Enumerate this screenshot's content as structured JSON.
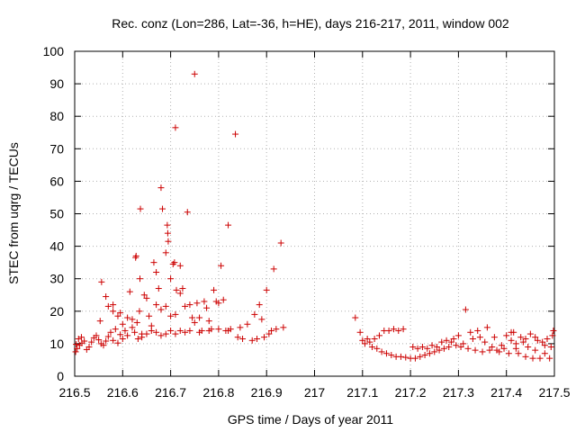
{
  "chart_data": {
    "type": "scatter",
    "title": "Rec. conz (Lon=286, Lat=-36, h=HE), days 216-217, 2011, window 002",
    "xlabel": "GPS time / Days of year 2011",
    "ylabel": "STEC from uqrg / TECUs",
    "xlim": [
      216.5,
      217.5
    ],
    "ylim": [
      0,
      100
    ],
    "x_ticks": [
      "216.5",
      "216.6",
      "216.7",
      "216.8",
      "216.9",
      "217",
      "217.1",
      "217.2",
      "217.3",
      "217.4",
      "217.5"
    ],
    "y_ticks": [
      "0",
      "10",
      "20",
      "30",
      "40",
      "50",
      "60",
      "70",
      "80",
      "90",
      "100"
    ],
    "grid": true,
    "marker": "plus",
    "marker_color": "#cc0000",
    "series": [
      {
        "points": [
          [
            216.502,
            7.5
          ],
          [
            216.505,
            8.5
          ],
          [
            216.51,
            9.5
          ],
          [
            216.515,
            10.2
          ],
          [
            216.52,
            10.8
          ],
          [
            216.503,
            9.8
          ],
          [
            216.508,
            11.5
          ],
          [
            216.514,
            12.0
          ],
          [
            216.525,
            8.2
          ],
          [
            216.53,
            9.0
          ],
          [
            216.535,
            10.5
          ],
          [
            216.54,
            11.8
          ],
          [
            216.545,
            12.5
          ],
          [
            216.55,
            11.2
          ],
          [
            216.555,
            10.0
          ],
          [
            216.56,
            9.5
          ],
          [
            216.565,
            10.8
          ],
          [
            216.57,
            12.2
          ],
          [
            216.575,
            13.5
          ],
          [
            216.58,
            11.0
          ],
          [
            216.585,
            14.5
          ],
          [
            216.59,
            10.2
          ],
          [
            216.595,
            12.8
          ],
          [
            216.6,
            11.5
          ],
          [
            216.553,
            17.0
          ],
          [
            216.556,
            29.0
          ],
          [
            216.565,
            24.5
          ],
          [
            216.57,
            21.5
          ],
          [
            216.58,
            20.0
          ],
          [
            216.59,
            18.5
          ],
          [
            216.6,
            16.0
          ],
          [
            216.58,
            22.0
          ],
          [
            216.595,
            19.5
          ],
          [
            216.605,
            14.0
          ],
          [
            216.61,
            12.5
          ],
          [
            216.615,
            26.0
          ],
          [
            216.62,
            17.5
          ],
          [
            216.625,
            13.5
          ],
          [
            216.63,
            16.5
          ],
          [
            216.635,
            20.0
          ],
          [
            216.61,
            18.0
          ],
          [
            216.62,
            15.0
          ],
          [
            216.632,
            11.5
          ],
          [
            216.64,
            13.0
          ],
          [
            216.645,
            25.0
          ],
          [
            216.65,
            24.0
          ],
          [
            216.655,
            18.5
          ],
          [
            216.66,
            15.5
          ],
          [
            216.627,
            36.5
          ],
          [
            216.628,
            37.0
          ],
          [
            216.636,
            30.0
          ],
          [
            216.637,
            51.5
          ],
          [
            216.665,
            35.0
          ],
          [
            216.67,
            32.0
          ],
          [
            216.675,
            27.0
          ],
          [
            216.68,
            20.5
          ],
          [
            216.67,
            22.0
          ],
          [
            216.68,
            58.0
          ],
          [
            216.683,
            51.5
          ],
          [
            216.69,
            38.0
          ],
          [
            216.693,
            46.5
          ],
          [
            216.694,
            44.0
          ],
          [
            216.695,
            41.5
          ],
          [
            216.7,
            30.0
          ],
          [
            216.705,
            34.5
          ],
          [
            216.708,
            35.0
          ],
          [
            216.71,
            76.5
          ],
          [
            216.712,
            26.5
          ],
          [
            216.72,
            34.0
          ],
          [
            216.725,
            27.0
          ],
          [
            216.73,
            21.5
          ],
          [
            216.735,
            50.5
          ],
          [
            216.69,
            21.5
          ],
          [
            216.7,
            18.5
          ],
          [
            216.71,
            19.0
          ],
          [
            216.72,
            25.5
          ],
          [
            216.74,
            22.0
          ],
          [
            216.745,
            18.0
          ],
          [
            216.75,
            93.0
          ],
          [
            216.75,
            16.5
          ],
          [
            216.755,
            22.5
          ],
          [
            216.76,
            18.0
          ],
          [
            216.765,
            14.0
          ],
          [
            216.77,
            23.0
          ],
          [
            216.775,
            21.0
          ],
          [
            216.78,
            17.0
          ],
          [
            216.785,
            14.5
          ],
          [
            216.79,
            26.5
          ],
          [
            216.795,
            23.0
          ],
          [
            216.8,
            22.5
          ],
          [
            216.805,
            34.0
          ],
          [
            216.81,
            23.5
          ],
          [
            216.815,
            14.0
          ],
          [
            216.82,
            46.5
          ],
          [
            216.825,
            14.5
          ],
          [
            216.835,
            74.5
          ],
          [
            216.84,
            12.0
          ],
          [
            216.845,
            15.0
          ],
          [
            216.85,
            11.5
          ],
          [
            216.86,
            16.0
          ],
          [
            216.87,
            11.0
          ],
          [
            216.875,
            19.0
          ],
          [
            216.88,
            11.5
          ],
          [
            216.885,
            22.0
          ],
          [
            216.89,
            17.5
          ],
          [
            216.895,
            12.0
          ],
          [
            216.9,
            26.5
          ],
          [
            216.905,
            13.0
          ],
          [
            216.91,
            14.0
          ],
          [
            216.915,
            33.0
          ],
          [
            216.92,
            14.5
          ],
          [
            216.93,
            41.0
          ],
          [
            216.935,
            15.0
          ],
          [
            216.64,
            12.0
          ],
          [
            216.65,
            13.0
          ],
          [
            216.66,
            14.0
          ],
          [
            216.67,
            13.5
          ],
          [
            216.68,
            12.5
          ],
          [
            216.69,
            13.0
          ],
          [
            216.7,
            14.0
          ],
          [
            216.71,
            13.0
          ],
          [
            216.72,
            14.0
          ],
          [
            216.73,
            13.5
          ],
          [
            216.74,
            14.0
          ],
          [
            216.76,
            13.5
          ],
          [
            216.78,
            14.0
          ],
          [
            216.8,
            14.5
          ],
          [
            216.82,
            14.0
          ],
          [
            217.085,
            18.0
          ],
          [
            217.095,
            13.5
          ],
          [
            217.1,
            11.0
          ],
          [
            217.105,
            10.0
          ],
          [
            217.11,
            11.5
          ],
          [
            217.115,
            10.5
          ],
          [
            217.12,
            9.0
          ],
          [
            217.125,
            11.5
          ],
          [
            217.13,
            8.5
          ],
          [
            217.135,
            12.5
          ],
          [
            217.14,
            7.5
          ],
          [
            217.145,
            14.0
          ],
          [
            217.15,
            7.0
          ],
          [
            217.155,
            14.0
          ],
          [
            217.16,
            6.5
          ],
          [
            217.165,
            14.5
          ],
          [
            217.17,
            6.0
          ],
          [
            217.175,
            14.0
          ],
          [
            217.18,
            6.0
          ],
          [
            217.185,
            14.5
          ],
          [
            217.19,
            5.8
          ],
          [
            217.2,
            5.5
          ],
          [
            217.205,
            9.0
          ],
          [
            217.21,
            5.5
          ],
          [
            217.215,
            8.5
          ],
          [
            217.22,
            6.0
          ],
          [
            217.225,
            9.0
          ],
          [
            217.23,
            6.5
          ],
          [
            217.235,
            8.5
          ],
          [
            217.24,
            7.0
          ],
          [
            217.245,
            9.5
          ],
          [
            217.25,
            7.5
          ],
          [
            217.255,
            9.0
          ],
          [
            217.26,
            8.0
          ],
          [
            217.265,
            10.5
          ],
          [
            217.27,
            8.5
          ],
          [
            217.275,
            11.0
          ],
          [
            217.28,
            9.0
          ],
          [
            217.285,
            10.5
          ],
          [
            217.29,
            11.5
          ],
          [
            217.295,
            9.5
          ],
          [
            217.3,
            12.5
          ],
          [
            217.305,
            9.0
          ],
          [
            217.31,
            10.0
          ],
          [
            217.315,
            20.5
          ],
          [
            217.32,
            8.5
          ],
          [
            217.325,
            13.5
          ],
          [
            217.33,
            11.5
          ],
          [
            217.335,
            8.0
          ],
          [
            217.34,
            14.0
          ],
          [
            217.345,
            12.0
          ],
          [
            217.35,
            7.5
          ],
          [
            217.355,
            10.5
          ],
          [
            217.36,
            15.0
          ],
          [
            217.365,
            8.0
          ],
          [
            217.37,
            9.0
          ],
          [
            217.375,
            12.0
          ],
          [
            217.38,
            8.0
          ],
          [
            217.385,
            7.5
          ],
          [
            217.39,
            9.5
          ],
          [
            217.395,
            8.5
          ],
          [
            217.4,
            12.5
          ],
          [
            217.405,
            7.0
          ],
          [
            217.41,
            11.0
          ],
          [
            217.415,
            13.5
          ],
          [
            217.42,
            8.5
          ],
          [
            217.425,
            7.0
          ],
          [
            217.43,
            12.0
          ],
          [
            217.435,
            10.5
          ],
          [
            217.44,
            6.0
          ],
          [
            217.445,
            9.0
          ],
          [
            217.45,
            13.0
          ],
          [
            217.455,
            5.5
          ],
          [
            217.46,
            8.0
          ],
          [
            217.465,
            11.0
          ],
          [
            217.47,
            5.5
          ],
          [
            217.475,
            10.5
          ],
          [
            217.48,
            7.0
          ],
          [
            217.485,
            11.5
          ],
          [
            217.49,
            5.5
          ],
          [
            217.493,
            9.0
          ],
          [
            217.496,
            12.5
          ],
          [
            217.498,
            14.0
          ],
          [
            217.44,
            11.5
          ],
          [
            217.46,
            12.0
          ],
          [
            217.48,
            9.5
          ],
          [
            217.42,
            10.0
          ],
          [
            217.41,
            13.5
          ]
        ]
      }
    ]
  }
}
